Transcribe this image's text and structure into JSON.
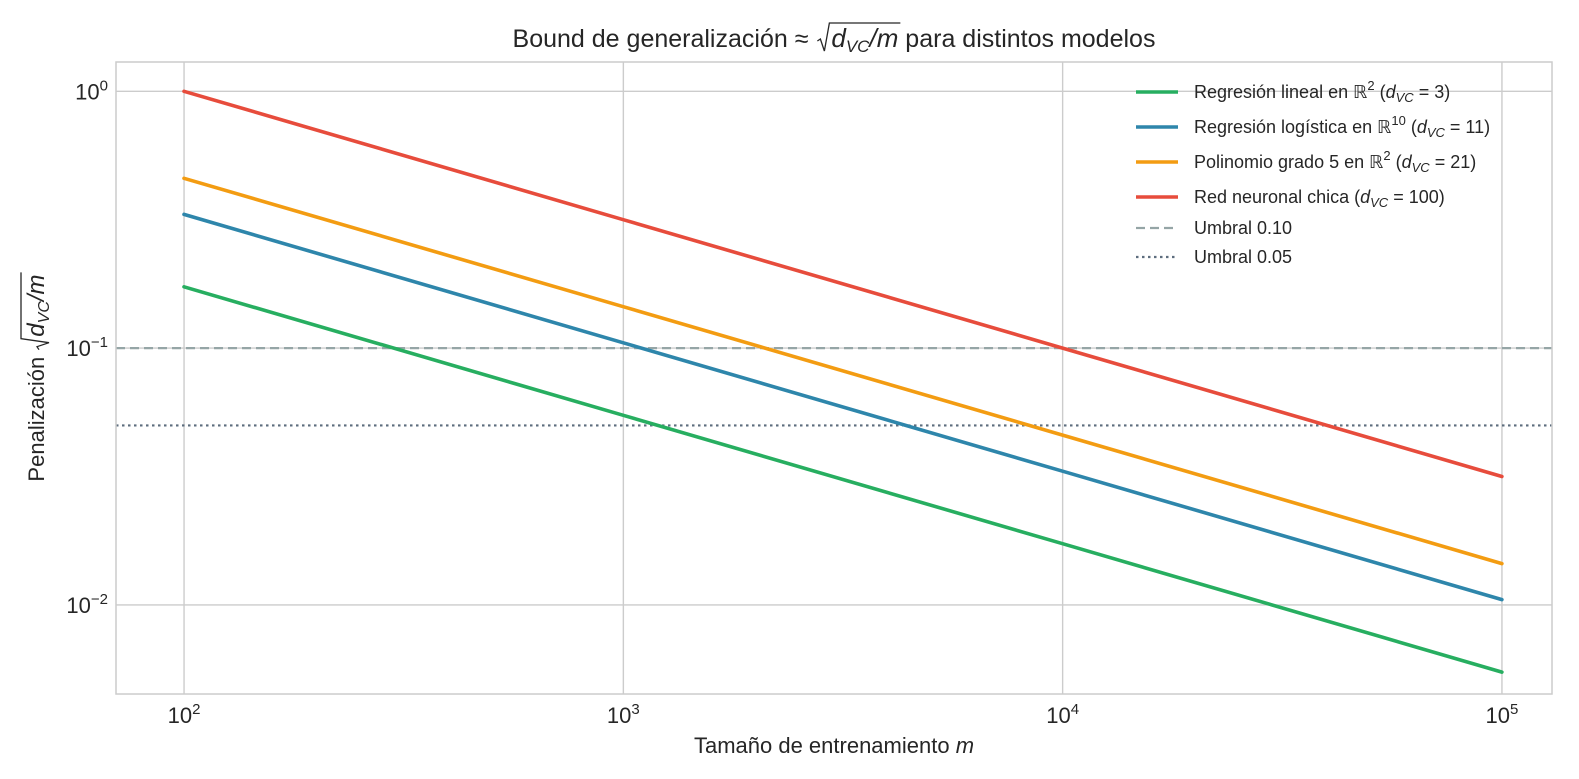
{
  "chart_data": {
    "type": "line",
    "title_parts": [
      "Bound de generalización ≈ ",
      "d",
      "VC",
      "/m",
      " para distintos modelos"
    ],
    "xlabel_parts": [
      "Tamaño de entrenamiento ",
      "m"
    ],
    "ylabel_parts": [
      "Penalización ",
      "d",
      "VC",
      "/m"
    ],
    "x_scale": "log",
    "y_scale": "log",
    "xlim": [
      70,
      130000
    ],
    "ylim": [
      0.0045,
      1.3
    ],
    "x_ticks": [
      {
        "value": 100,
        "base": "10",
        "exp": "2"
      },
      {
        "value": 1000,
        "base": "10",
        "exp": "3"
      },
      {
        "value": 10000,
        "base": "10",
        "exp": "4"
      },
      {
        "value": 100000,
        "base": "10",
        "exp": "5"
      }
    ],
    "y_ticks": [
      {
        "value": 1,
        "base": "10",
        "exp": "0"
      },
      {
        "value": 0.1,
        "base": "10",
        "exp": "−1"
      },
      {
        "value": 0.01,
        "base": "10",
        "exp": "−2"
      }
    ],
    "grid": true,
    "legend_position": "top-right",
    "x": [
      100,
      1000,
      10000,
      100000
    ],
    "series": [
      {
        "name": "Regresión lineal en ℝ²  (d_VC = 3)",
        "legend": [
          "Regresión lineal en ",
          "ℝ",
          "2",
          "  (",
          "d",
          "VC",
          " = 3)"
        ],
        "color": "#27ae60",
        "values": [
          0.1732,
          0.05477,
          0.01732,
          0.005477
        ]
      },
      {
        "name": "Regresión logística en ℝ¹⁰  (d_VC = 11)",
        "legend": [
          "Regresión logística en ",
          "ℝ",
          "10",
          "  (",
          "d",
          "VC",
          " = 11)"
        ],
        "color": "#2e86ab",
        "values": [
          0.3317,
          0.1049,
          0.03317,
          0.01049
        ]
      },
      {
        "name": "Polinomio grado 5 en ℝ²  (d_VC = 21)",
        "legend": [
          "Polinomio grado 5 en ",
          "ℝ",
          "2",
          "  (",
          "d",
          "VC",
          " = 21)"
        ],
        "color": "#f39c12",
        "values": [
          0.4583,
          0.1449,
          0.04583,
          0.01449
        ]
      },
      {
        "name": "Red neuronal chica  (d_VC = 100)",
        "legend": [
          "Red neuronal chica  (",
          "",
          "",
          "",
          "d",
          "VC",
          " = 100)"
        ],
        "color": "#e74c3c",
        "values": [
          1.0,
          0.3162,
          0.1,
          0.03162
        ]
      }
    ],
    "hlines": [
      {
        "name": "Umbral 0.10",
        "value": 0.1,
        "style": "dashed",
        "color": "#95a5a6"
      },
      {
        "name": "Umbral 0.05",
        "value": 0.05,
        "style": "dotted",
        "color": "#5d6d7e"
      }
    ]
  }
}
